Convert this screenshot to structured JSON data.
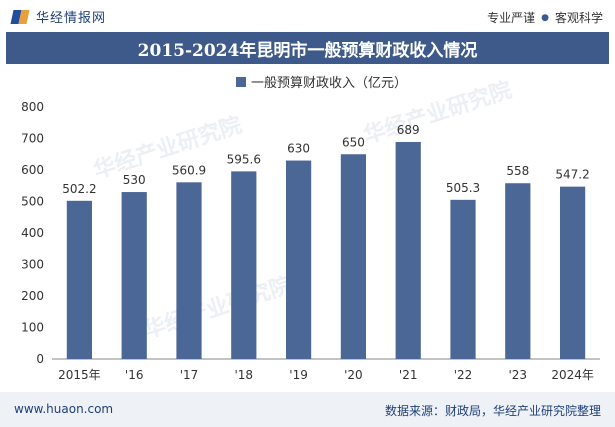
{
  "header": {
    "brand_name": "华经情报网",
    "slogan_left": "专业严谨",
    "slogan_dot": "●",
    "slogan_right": "客观科学"
  },
  "chart_data": {
    "type": "bar",
    "title": "2015-2024年昆明市一般预算财政收入情况",
    "categories": [
      "2015年",
      "'16",
      "'17",
      "'18",
      "'19",
      "'20",
      "'21",
      "'22",
      "'23",
      "2024年"
    ],
    "series": [
      {
        "name": "一般预算财政收入（亿元）",
        "values": [
          502.2,
          530,
          560.9,
          595.6,
          630,
          650,
          689,
          505.3,
          558,
          547.2
        ]
      }
    ],
    "value_labels": [
      "502.2",
      "530",
      "560.9",
      "595.6",
      "630",
      "650",
      "689",
      "505.3",
      "558",
      "547.2"
    ],
    "ylim": [
      0,
      800
    ],
    "yticks": [
      0,
      100,
      200,
      300,
      400,
      500,
      600,
      700,
      800
    ],
    "legend_position": "top-center",
    "grid": false,
    "bar_color": "#4a6796"
  },
  "watermarks": [
    "华经产业研究院",
    "华经产业研究院",
    "华经产业研究院"
  ],
  "footer": {
    "url": "www.huaon.com",
    "source": "数据来源：财政局，华经产业研究院整理"
  }
}
